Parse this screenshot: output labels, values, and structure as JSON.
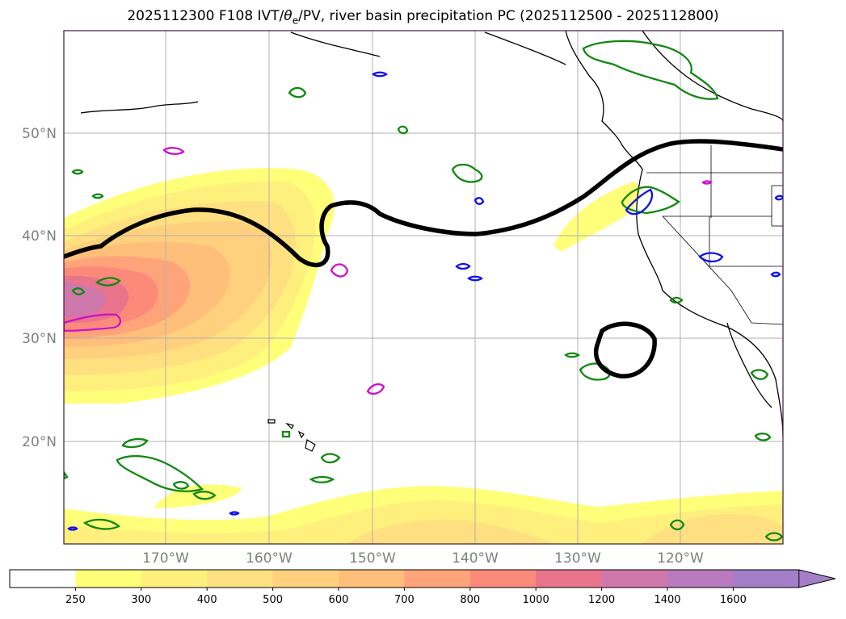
{
  "title": {
    "prefix": "2025112300 F108 IVT/",
    "theta_symbol": "θ",
    "theta_sub": "e",
    "suffix": "/PV, river basin precipitation PC (2025112500 - 2025112800)"
  },
  "map": {
    "lon_range": [
      -180,
      -110
    ],
    "lat_range": [
      10,
      60
    ],
    "lat_labels": [
      {
        "lat": 50,
        "text": "50°N"
      },
      {
        "lat": 40,
        "text": "40°N"
      },
      {
        "lat": 30,
        "text": "30°N"
      },
      {
        "lat": 20,
        "text": "20°N"
      }
    ],
    "lon_labels": [
      {
        "lon": -170,
        "text": "170°W"
      },
      {
        "lon": -160,
        "text": "160°W"
      },
      {
        "lon": -150,
        "text": "150°W"
      },
      {
        "lon": -140,
        "text": "140°W"
      },
      {
        "lon": -130,
        "text": "130°W"
      },
      {
        "lon": -120,
        "text": "120°W"
      }
    ],
    "grid_color": "#b0b0b0",
    "frame_color": "#3a1a3a"
  },
  "colorbar": {
    "levels": [
      "250",
      "300",
      "400",
      "500",
      "600",
      "700",
      "800",
      "1000",
      "1200",
      "1400",
      "1600"
    ],
    "colors": [
      "#ffffff",
      "#ffff7a",
      "#fff07e",
      "#ffe080",
      "#ffd07e",
      "#ffbe7a",
      "#ffa37a",
      "#fc8a7a",
      "#e9748c",
      "#cf78ab",
      "#b97ac0",
      "#a57ec8"
    ],
    "extend": "max"
  },
  "overlays": {
    "pv_color": "#000000",
    "green_contour_color": "#118811",
    "blue_contour_color": "#1010ee",
    "magenta_contour_color": "#cc11cc"
  }
}
